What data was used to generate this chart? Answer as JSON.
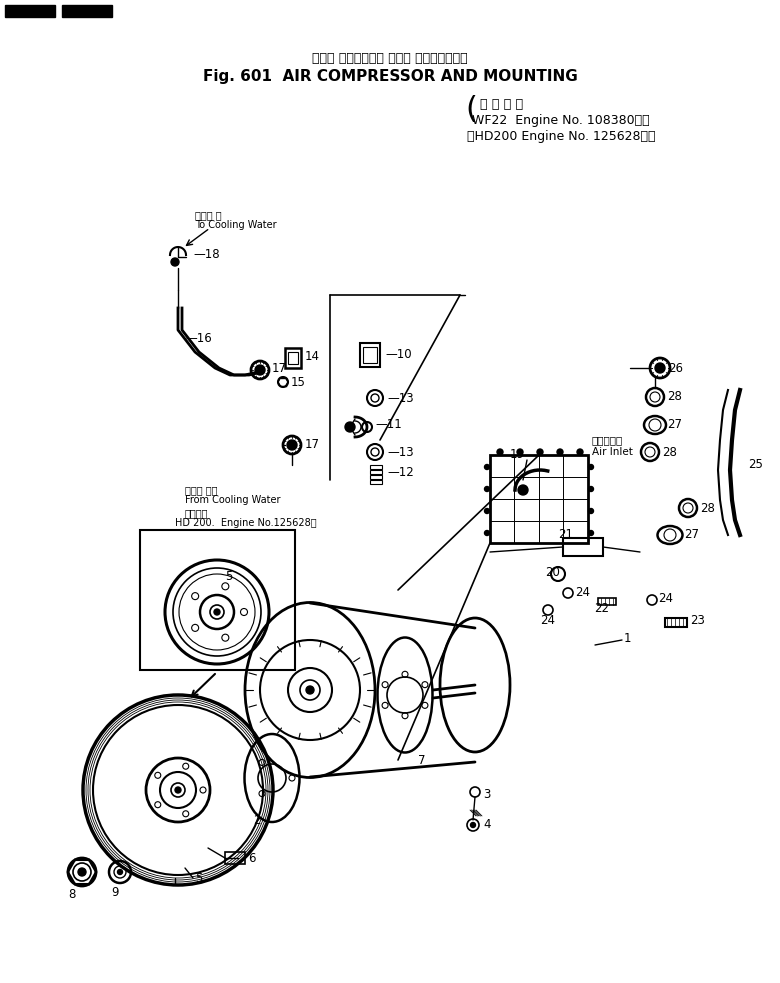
{
  "title_jp": "エアー コンプレッサ および マウンティング",
  "title_en": "Fig. 601  AIR COMPRESSOR AND MOUNTING",
  "subtitle_jp": "適 用 号 機",
  "line1": "WF22  Engine No. 108380～）",
  "line2": "（HD200 Engine No. 125628～）",
  "cooling_to": "冷却水 ～",
  "cooling_to_en": "To Cooling Water",
  "cooling_from": "冷却水 から",
  "cooling_from_en": "From Cooling Water",
  "applicable": "適用号機",
  "hd200": "HD 200． Engine No.125628～",
  "air_inlet_jp": "エアー入口",
  "air_inlet_en": "Air Inlet",
  "bg_color": "#ffffff"
}
